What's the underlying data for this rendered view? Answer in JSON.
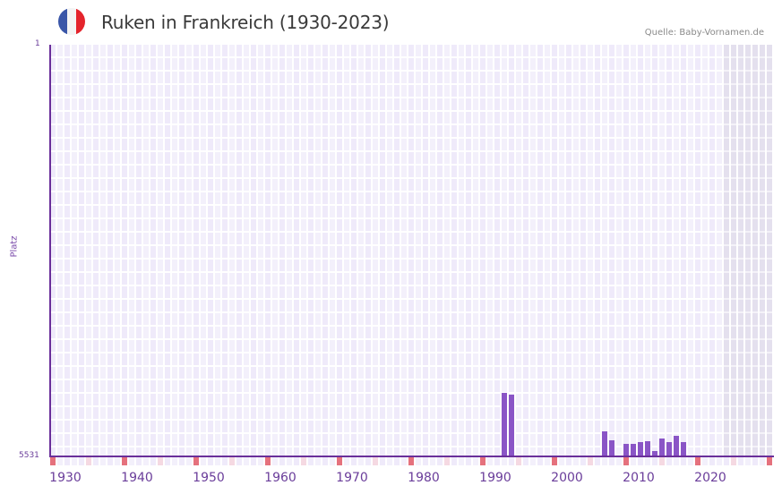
{
  "header": {
    "title": "Ruken in Frankreich (1930-2023)",
    "source": "Quelle: Baby-Vornamen.de",
    "flag_colors": [
      "#3a56a8",
      "#f4f4f4",
      "#e4242c"
    ]
  },
  "axis": {
    "y_title": "Platz",
    "y_top_label": "1",
    "y_bottom_label": "5531",
    "x_labels": [
      "1930",
      "1940",
      "1950",
      "1960",
      "1970",
      "1980",
      "1990",
      "2000",
      "2010",
      "2020"
    ]
  },
  "colors": {
    "bar": "#8a55c6",
    "axis": "#6a2f9a",
    "marker_red": "#e5717d",
    "marker_pink": "#f5d9e2"
  },
  "chart_data": {
    "type": "bar",
    "title": "Ruken in Frankreich (1930-2023)",
    "xlabel": "",
    "ylabel": "Platz",
    "y_inverted": true,
    "ylim": [
      1,
      5531
    ],
    "x_range": [
      1928,
      2028
    ],
    "grid": true,
    "shaded_region": [
      2022,
      2028
    ],
    "categories": [
      1991,
      1992,
      2005,
      2006,
      2008,
      2009,
      2010,
      2011,
      2012,
      2013,
      2014,
      2015,
      2016
    ],
    "values": [
      4678,
      4701,
      5194,
      5315,
      5363,
      5363,
      5339,
      5327,
      5459,
      5291,
      5339,
      5254,
      5339
    ],
    "tick_labels": [
      "1930",
      "1940",
      "1950",
      "1960",
      "1970",
      "1980",
      "1990",
      "2000",
      "2010",
      "2020"
    ],
    "annotation": "Quelle: Baby-Vornamen.de"
  }
}
